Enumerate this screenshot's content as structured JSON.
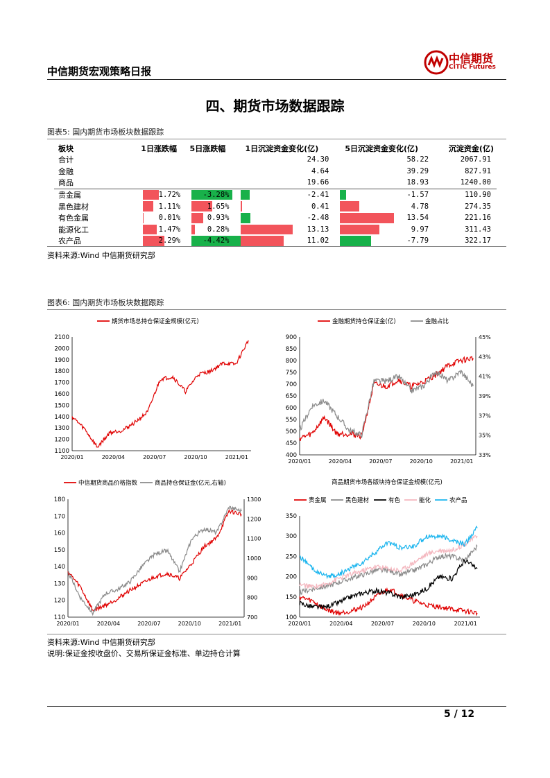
{
  "header": {
    "title": "中信期货宏观策略日报",
    "logo_cn": "中信期货",
    "logo_en": "CITIC Futures"
  },
  "section_title": "四、期货市场数据跟踪",
  "figure5": {
    "caption": "图表5:  国内期货市场板块数据跟踪",
    "columns": [
      "板块",
      "1日涨跌幅",
      "5日涨跌幅",
      "1日沉淀资金变化(亿)",
      "5日沉淀资金变化(亿)",
      "沉淀资金(亿)"
    ],
    "rows": [
      {
        "name": "合计",
        "d1": "",
        "d5": "",
        "c1": "24.30",
        "c5": "58.22",
        "total": "2067.91"
      },
      {
        "name": "金融",
        "d1": "",
        "d5": "",
        "c1": "4.64",
        "c5": "39.29",
        "total": "827.91"
      },
      {
        "name": "商品",
        "d1": "",
        "d5": "",
        "c1": "19.66",
        "c5": "18.93",
        "total": "1240.00"
      },
      {
        "name": "贵金属",
        "d1": "1.72%",
        "d5": "-3.28%",
        "c1": "-2.41",
        "c5": "-1.57",
        "total": "110.90"
      },
      {
        "name": "黑色建材",
        "d1": "1.11%",
        "d5": "1.65%",
        "c1": "0.41",
        "c5": "4.78",
        "total": "274.35"
      },
      {
        "name": "有色金属",
        "d1": "0.01%",
        "d5": "0.93%",
        "c1": "-2.48",
        "c5": "13.54",
        "total": "221.16"
      },
      {
        "name": "能源化工",
        "d1": "1.47%",
        "d5": "0.28%",
        "c1": "13.13",
        "c5": "9.97",
        "total": "311.43"
      },
      {
        "name": "农产品",
        "d1": "2.29%",
        "d5": "-4.42%",
        "c1": "11.02",
        "c5": "-7.79",
        "total": "322.17"
      }
    ],
    "source": "资料来源:Wind  中信期货研究部"
  },
  "figure6": {
    "caption": "图表6:  国内期货市场板块数据跟踪",
    "source": "资料来源:Wind  中信期货研究部",
    "note": "说明:保证金按收盘价、交易所保证金标准、单边持仓计算"
  },
  "colors": {
    "red": "#e00000",
    "gray": "#8a8a8a",
    "black": "#000000",
    "pink": "#f4b6be",
    "blue": "#18b4ee",
    "pos_bar": "#f2545b",
    "neg_bar": "#18b14a"
  },
  "chart_data": [
    {
      "type": "line",
      "title": "",
      "series": [
        {
          "name": "期货市场总持仓保证金规模(亿元)",
          "x": [
            "2020/01",
            "2020/02",
            "2020/03",
            "2020/04",
            "2020/05",
            "2020/06",
            "2020/07",
            "2020/08",
            "2020/09",
            "2020/10",
            "2020/11",
            "2020/12",
            "2021/01",
            "2021/02",
            "2021/03"
          ],
          "values": [
            1400,
            1290,
            1130,
            1260,
            1280,
            1350,
            1440,
            1730,
            1750,
            1620,
            1770,
            1800,
            1870,
            1860,
            2070
          ]
        }
      ],
      "x_ticks": [
        "2020/01",
        "2020/04",
        "2020/07",
        "2020/10",
        "2021/01"
      ],
      "ylim": [
        1100,
        2100
      ],
      "y_ticks": [
        "1100",
        "1200",
        "1300",
        "1400",
        "1500",
        "1600",
        "1700",
        "1800",
        "1900",
        "2000",
        "2100"
      ]
    },
    {
      "type": "line",
      "title": "",
      "series": [
        {
          "name": "金融期货持仓保证金(亿)",
          "axis": "left",
          "x": [
            "2020/01",
            "2020/02",
            "2020/03",
            "2020/04",
            "2020/05",
            "2020/06",
            "2020/07",
            "2020/08",
            "2020/09",
            "2020/10",
            "2020/11",
            "2020/12",
            "2021/01",
            "2021/02",
            "2021/03"
          ],
          "values": [
            470,
            490,
            560,
            490,
            490,
            480,
            700,
            690,
            720,
            690,
            710,
            740,
            780,
            800,
            810
          ]
        },
        {
          "name": "金融占比",
          "axis": "right",
          "x": [
            "2020/01",
            "2020/02",
            "2020/03",
            "2020/04",
            "2020/05",
            "2020/06",
            "2020/07",
            "2020/08",
            "2020/09",
            "2020/10",
            "2020/11",
            "2020/12",
            "2021/01",
            "2021/02",
            "2021/03"
          ],
          "values": [
            35.5,
            38.0,
            38.5,
            37.0,
            35.5,
            35.0,
            40.5,
            40.5,
            41.0,
            39.5,
            40.0,
            41.5,
            40.5,
            41.5,
            40.0
          ]
        }
      ],
      "x_ticks": [
        "2020/01",
        "2020/04",
        "2020/07",
        "2020/10",
        "2021/01"
      ],
      "ylim": [
        400,
        900
      ],
      "y_ticks": [
        "400",
        "450",
        "500",
        "550",
        "600",
        "650",
        "700",
        "750",
        "800",
        "850",
        "900"
      ],
      "y2lim": [
        33,
        45
      ],
      "y2_ticks": [
        "33%",
        "35%",
        "37%",
        "39%",
        "41%",
        "43%",
        "45%"
      ]
    },
    {
      "type": "line",
      "title": "",
      "series": [
        {
          "name": "中信期货商品价格指数",
          "axis": "left",
          "x": [
            "2020/01",
            "2020/02",
            "2020/03",
            "2020/04",
            "2020/05",
            "2020/06",
            "2020/07",
            "2020/08",
            "2020/09",
            "2020/10",
            "2020/11",
            "2020/12",
            "2021/01",
            "2021/02",
            "2021/03"
          ],
          "values": [
            137,
            128,
            114,
            117,
            121,
            126,
            130,
            134,
            136,
            133,
            142,
            152,
            157,
            173,
            171
          ]
        },
        {
          "name": "商品持仓保证金(亿元,右轴)",
          "axis": "right",
          "x": [
            "2020/01",
            "2020/02",
            "2020/03",
            "2020/04",
            "2020/05",
            "2020/06",
            "2020/07",
            "2020/08",
            "2020/09",
            "2020/10",
            "2020/11",
            "2020/12",
            "2021/01",
            "2021/02",
            "2021/03"
          ],
          "values": [
            930,
            800,
            720,
            820,
            840,
            880,
            960,
            1020,
            1040,
            930,
            1100,
            1150,
            1130,
            1260,
            1240
          ]
        }
      ],
      "x_ticks": [
        "2020/01",
        "2020/04",
        "2020/07",
        "2020/10",
        "2021/01"
      ],
      "ylim": [
        110,
        180
      ],
      "y_ticks": [
        "110",
        "120",
        "130",
        "140",
        "150",
        "160",
        "170",
        "180"
      ],
      "y2lim": [
        700,
        1300
      ],
      "y2_ticks": [
        "700",
        "800",
        "900",
        "1000",
        "1100",
        "1200",
        "1300"
      ]
    },
    {
      "type": "line",
      "title": "商品期货市场各版块持仓保证金规模(亿元)",
      "series": [
        {
          "name": "贵金属",
          "x": [
            "2020/01",
            "2020/02",
            "2020/03",
            "2020/04",
            "2020/05",
            "2020/06",
            "2020/07",
            "2020/08",
            "2020/09",
            "2020/10",
            "2020/11",
            "2020/12",
            "2021/01",
            "2021/02",
            "2021/03"
          ],
          "values": [
            150,
            140,
            120,
            110,
            115,
            125,
            150,
            170,
            155,
            140,
            130,
            125,
            120,
            115,
            110
          ]
        },
        {
          "name": "黑色建材",
          "x": [
            "2020/01",
            "2020/02",
            "2020/03",
            "2020/04",
            "2020/05",
            "2020/06",
            "2020/07",
            "2020/08",
            "2020/09",
            "2020/10",
            "2020/11",
            "2020/12",
            "2021/01",
            "2021/02",
            "2021/03"
          ],
          "values": [
            160,
            170,
            175,
            185,
            195,
            205,
            215,
            215,
            205,
            215,
            230,
            250,
            250,
            240,
            275
          ]
        },
        {
          "name": "有色",
          "x": [
            "2020/01",
            "2020/02",
            "2020/03",
            "2020/04",
            "2020/05",
            "2020/06",
            "2020/07",
            "2020/08",
            "2020/09",
            "2020/10",
            "2020/11",
            "2020/12",
            "2021/01",
            "2021/02",
            "2021/03"
          ],
          "values": [
            135,
            125,
            125,
            135,
            150,
            160,
            165,
            160,
            150,
            155,
            170,
            200,
            195,
            240,
            220
          ]
        },
        {
          "name": "能化",
          "x": [
            "2020/01",
            "2020/02",
            "2020/03",
            "2020/04",
            "2020/05",
            "2020/06",
            "2020/07",
            "2020/08",
            "2020/09",
            "2020/10",
            "2020/11",
            "2020/12",
            "2021/01",
            "2021/02",
            "2021/03"
          ],
          "values": [
            180,
            175,
            180,
            195,
            205,
            215,
            225,
            220,
            215,
            235,
            255,
            265,
            265,
            280,
            300
          ]
        },
        {
          "name": "农产品",
          "x": [
            "2020/01",
            "2020/02",
            "2020/03",
            "2020/04",
            "2020/05",
            "2020/06",
            "2020/07",
            "2020/08",
            "2020/09",
            "2020/10",
            "2020/11",
            "2020/12",
            "2021/01",
            "2021/02",
            "2021/03"
          ],
          "values": [
            250,
            220,
            200,
            205,
            220,
            235,
            260,
            285,
            270,
            275,
            300,
            300,
            290,
            280,
            320
          ]
        }
      ],
      "x_ticks": [
        "2020/01",
        "2020/04",
        "2020/07",
        "2020/10",
        "2021/01"
      ],
      "ylim": [
        100,
        350
      ],
      "y_ticks": [
        "100",
        "150",
        "200",
        "250",
        "300",
        "350"
      ]
    }
  ],
  "page": {
    "number": "5 / 12"
  }
}
